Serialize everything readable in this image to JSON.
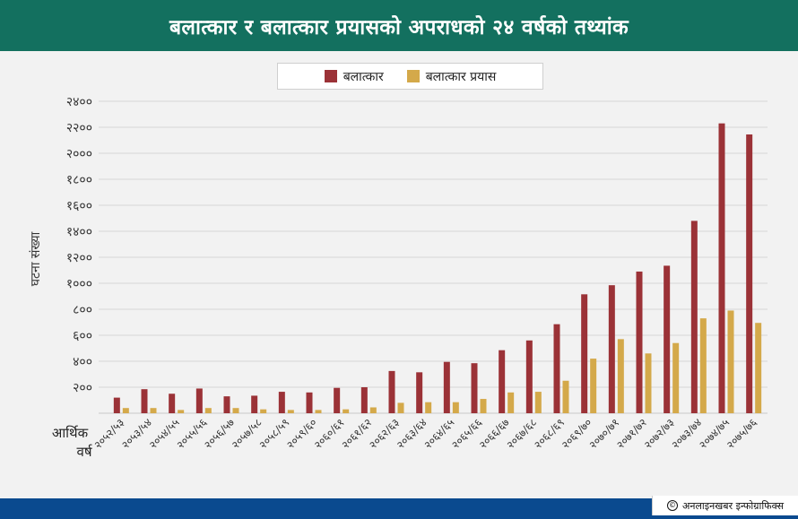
{
  "header": {
    "title": "बलात्कार र बलात्कार प्रयासको अपराधको २४ वर्षको तथ्यांक"
  },
  "footer": {
    "credit_icon": "©",
    "credit": "अनलाइनखबर इन्फोग्राफिक्स"
  },
  "colors": {
    "rape": "#9b3237",
    "attempt": "#d4a94a",
    "header": "#13705f",
    "footer": "#0a4a8f"
  },
  "chart_data": {
    "type": "bar",
    "title": "",
    "ylabel": "घटना संख्या",
    "xlabel": "आर्थिक वर्ष",
    "ylim": [
      0,
      2400
    ],
    "yticks": [
      {
        "value": 200,
        "label": "२००"
      },
      {
        "value": 400,
        "label": "४००"
      },
      {
        "value": 600,
        "label": "६००"
      },
      {
        "value": 800,
        "label": "८००"
      },
      {
        "value": 1000,
        "label": "१०००"
      },
      {
        "value": 1200,
        "label": "१२००"
      },
      {
        "value": 1400,
        "label": "१४००"
      },
      {
        "value": 1600,
        "label": "१६००"
      },
      {
        "value": 1800,
        "label": "१८००"
      },
      {
        "value": 2000,
        "label": "२०००"
      },
      {
        "value": 2200,
        "label": "२२००"
      },
      {
        "value": 2400,
        "label": "२४००"
      }
    ],
    "grid": true,
    "legend_position": "top-center",
    "categories": [
      "२०५२/५३",
      "२०५३/५४",
      "२०५४/५५",
      "२०५५/५६",
      "२०५६/५७",
      "२०५७/५८",
      "२०५८/५९",
      "२०५९/६०",
      "२०६०/६१",
      "२०६१/६२",
      "२०६२/६३",
      "२०६३/६४",
      "२०६४/६५",
      "२०६५/६६",
      "२०६६/६७",
      "२०६७/६८",
      "२०६८/६९",
      "२०६९/७०",
      "२०७०/७१",
      "२०७१/७२",
      "२०७२/७३",
      "२०७३/७४",
      "२०७४/७५",
      "२०७५/७६"
    ],
    "series": [
      {
        "name": "बलात्कार",
        "values": [
          120,
          185,
          150,
          190,
          130,
          135,
          165,
          160,
          195,
          200,
          325,
          315,
          395,
          385,
          485,
          560,
          685,
          915,
          985,
          1090,
          1135,
          1480,
          2230,
          2145
        ]
      },
      {
        "name": "बलात्कार प्रयास",
        "values": [
          40,
          40,
          25,
          40,
          40,
          30,
          25,
          25,
          30,
          45,
          80,
          85,
          85,
          110,
          160,
          165,
          250,
          420,
          570,
          460,
          540,
          730,
          790,
          695
        ]
      }
    ]
  }
}
